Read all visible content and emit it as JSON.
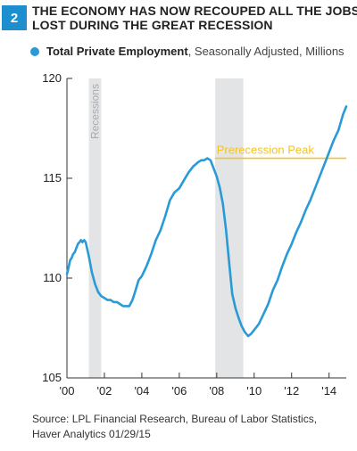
{
  "figure": {
    "number": "2",
    "title_lines": [
      "THE ECONOMY HAS NOW RECOUPED ALL THE JOBS",
      "LOST DURING THE GREAT RECESSION"
    ],
    "accent_color": "#1e8fce"
  },
  "legend": {
    "series_name": "Total Private Employment",
    "series_detail": ", Seasonally Adjusted, Millions",
    "color": "#2a9ad6"
  },
  "chart_data": {
    "type": "line",
    "title": "",
    "xlabel": "",
    "ylabel": "",
    "ylim": [
      105,
      120
    ],
    "xlim": [
      2000.0,
      2014.92
    ],
    "yticks": [
      105,
      110,
      115,
      120
    ],
    "xticks": [
      {
        "value": 2000,
        "label": "'00"
      },
      {
        "value": 2002,
        "label": "'02"
      },
      {
        "value": 2004,
        "label": "'04"
      },
      {
        "value": 2006,
        "label": "'06"
      },
      {
        "value": 2008,
        "label": "'08"
      },
      {
        "value": 2010,
        "label": "'10"
      },
      {
        "value": 2012,
        "label": "'12"
      },
      {
        "value": 2014,
        "label": "'14"
      }
    ],
    "grid": false,
    "recessions": [
      {
        "start": 2001.17,
        "end": 2001.83,
        "label": "Recessions"
      },
      {
        "start": 2007.92,
        "end": 2009.42,
        "label": ""
      }
    ],
    "reference_line": {
      "value": 116.0,
      "label": "Prerecession Peak",
      "color": "#f2c42a",
      "x_start": 2007.9
    },
    "series": [
      {
        "name": "Total Private Employment",
        "color": "#2a9ad6",
        "x": [
          2000.0,
          2000.08,
          2000.17,
          2000.25,
          2000.33,
          2000.42,
          2000.5,
          2000.58,
          2000.67,
          2000.75,
          2000.83,
          2000.92,
          2001.0,
          2001.17,
          2001.33,
          2001.5,
          2001.67,
          2001.83,
          2002.0,
          2002.17,
          2002.33,
          2002.5,
          2002.67,
          2002.83,
          2003.0,
          2003.17,
          2003.33,
          2003.5,
          2003.67,
          2003.83,
          2004.0,
          2004.25,
          2004.5,
          2004.75,
          2005.0,
          2005.25,
          2005.5,
          2005.75,
          2006.0,
          2006.25,
          2006.5,
          2006.75,
          2007.0,
          2007.17,
          2007.33,
          2007.5,
          2007.67,
          2007.83,
          2008.0,
          2008.17,
          2008.33,
          2008.5,
          2008.67,
          2008.83,
          2009.0,
          2009.17,
          2009.33,
          2009.5,
          2009.67,
          2009.83,
          2010.0,
          2010.25,
          2010.5,
          2010.75,
          2011.0,
          2011.25,
          2011.5,
          2011.75,
          2012.0,
          2012.25,
          2012.5,
          2012.75,
          2013.0,
          2013.25,
          2013.5,
          2013.75,
          2014.0,
          2014.25,
          2014.5,
          2014.75,
          2014.92
        ],
        "values": [
          110.2,
          110.5,
          110.9,
          111.0,
          111.2,
          111.3,
          111.5,
          111.7,
          111.8,
          111.9,
          111.8,
          111.9,
          111.8,
          111.1,
          110.3,
          109.7,
          109.3,
          109.1,
          109.0,
          108.9,
          108.9,
          108.8,
          108.8,
          108.7,
          108.6,
          108.6,
          108.6,
          108.9,
          109.4,
          109.9,
          110.1,
          110.6,
          111.2,
          111.9,
          112.4,
          113.1,
          113.9,
          114.3,
          114.5,
          114.9,
          115.3,
          115.6,
          115.8,
          115.9,
          115.9,
          116.0,
          115.9,
          115.5,
          115.1,
          114.5,
          113.7,
          112.4,
          110.7,
          109.2,
          108.5,
          108.0,
          107.6,
          107.3,
          107.1,
          107.2,
          107.4,
          107.7,
          108.2,
          108.7,
          109.4,
          109.9,
          110.6,
          111.2,
          111.7,
          112.3,
          112.8,
          113.4,
          113.9,
          114.5,
          115.1,
          115.7,
          116.3,
          116.9,
          117.4,
          118.2,
          118.6
        ]
      }
    ]
  },
  "source": {
    "line1": "Source: LPL Financial Research, Bureau of Labor Statistics,",
    "line2": "Haver Analytics   01/29/15"
  }
}
